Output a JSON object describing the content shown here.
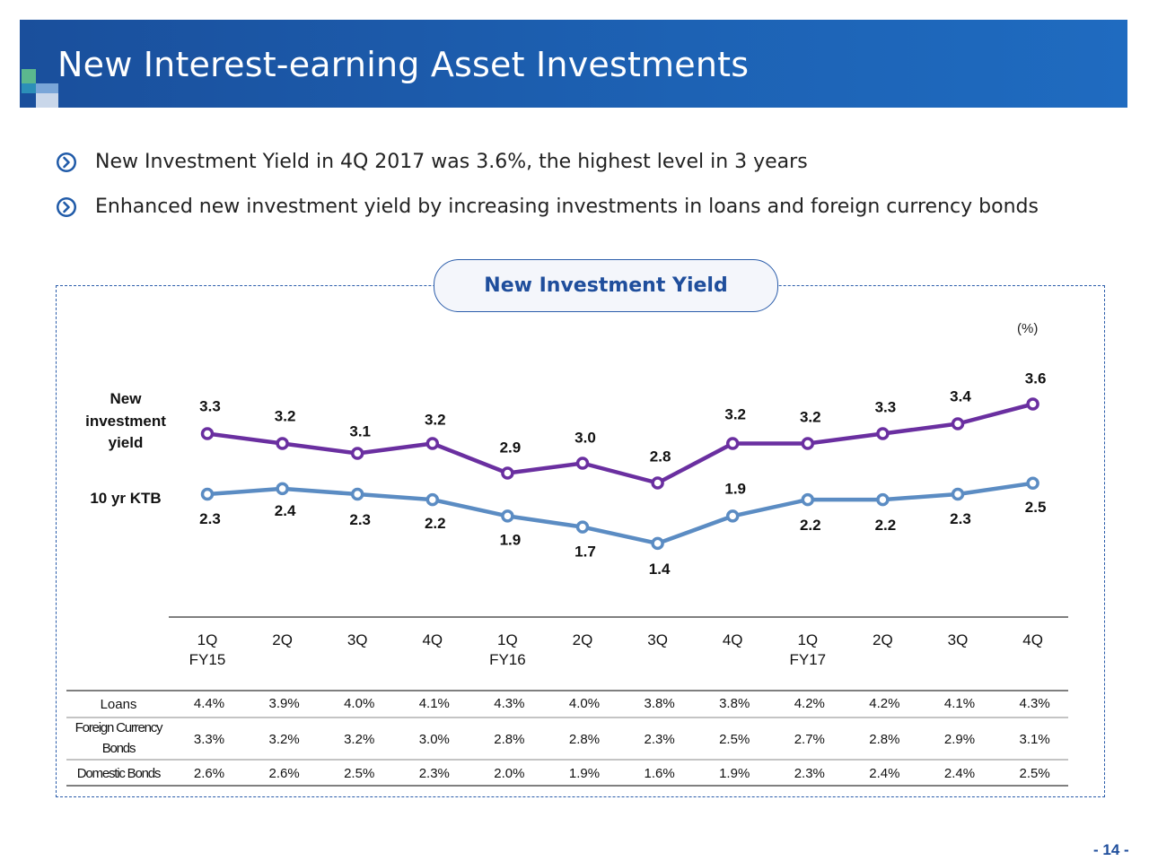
{
  "header": {
    "title": "New Interest-earning Asset Investments"
  },
  "bullets": [
    "New Investment Yield in 4Q 2017 was 3.6%, the highest level in 3 years",
    "Enhanced new investment yield by increasing investments in loans and foreign currency bonds"
  ],
  "unit_label": "(%)",
  "page_number": "- 14 -",
  "colors": {
    "header": "#1d5fae",
    "accent": "#1f4e9c",
    "yield_line": "#6a2fa0",
    "ktb_line": "#5b8cc3"
  },
  "chart_data": {
    "type": "line",
    "title": "New Investment Yield",
    "quarters": [
      "1Q",
      "2Q",
      "3Q",
      "4Q",
      "1Q",
      "2Q",
      "3Q",
      "4Q",
      "1Q",
      "2Q",
      "3Q",
      "4Q"
    ],
    "years": [
      "FY15",
      "FY16",
      "FY17"
    ],
    "series": [
      {
        "name": "New investment yield",
        "label_lines": [
          "New",
          "investment",
          "yield"
        ],
        "values": [
          3.3,
          3.2,
          3.1,
          3.2,
          2.9,
          3.0,
          2.8,
          3.2,
          3.2,
          3.3,
          3.4,
          3.6
        ]
      },
      {
        "name": "10 yr KTB",
        "label_lines": [
          "10 yr KTB"
        ],
        "values": [
          2.3,
          2.4,
          2.3,
          2.2,
          1.9,
          1.7,
          1.4,
          1.9,
          2.2,
          2.2,
          2.3,
          2.5
        ]
      }
    ],
    "table": [
      {
        "label": "Loans",
        "values": [
          "4.4%",
          "3.9%",
          "4.0%",
          "4.1%",
          "4.3%",
          "4.0%",
          "3.8%",
          "3.8%",
          "4.2%",
          "4.2%",
          "4.1%",
          "4.3%"
        ]
      },
      {
        "label": "Foreign Currency Bonds",
        "label_lines": [
          "Foreign Currency",
          "Bonds"
        ],
        "values": [
          "3.3%",
          "3.2%",
          "3.2%",
          "3.0%",
          "2.8%",
          "2.8%",
          "2.3%",
          "2.5%",
          "2.7%",
          "2.8%",
          "2.9%",
          "3.1%"
        ]
      },
      {
        "label": "Domestic Bonds",
        "values": [
          "2.6%",
          "2.6%",
          "2.5%",
          "2.3%",
          "2.0%",
          "1.9%",
          "1.6%",
          "1.9%",
          "2.3%",
          "2.4%",
          "2.4%",
          "2.5%"
        ]
      }
    ]
  }
}
